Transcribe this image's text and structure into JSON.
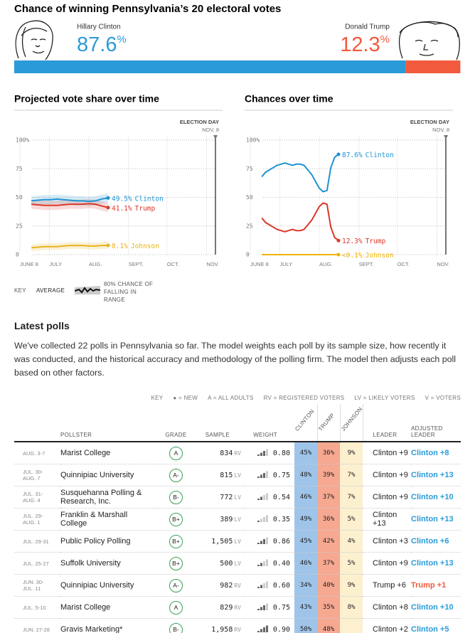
{
  "header": {
    "title": "Chance of winning Pennsylvania’s 20 electoral votes",
    "percent_sign": "%",
    "candidates": [
      {
        "name": "Hillary Clinton",
        "chance": 87.6,
        "color": "#2a9bd8"
      },
      {
        "name": "Donald Trump",
        "chance": 12.3,
        "color": "#f15a3d"
      }
    ]
  },
  "chart_data": [
    {
      "type": "line",
      "title": "Projected vote share over time",
      "election_day": {
        "label": "ELECTION DAY",
        "date": {
          "value": 153,
          "label": "NOV. 8"
        }
      },
      "x": [
        9,
        14,
        19,
        24,
        29,
        34,
        39,
        44,
        49,
        54,
        59,
        64,
        69
      ],
      "xlim": [
        0,
        153
      ],
      "xticks": [
        {
          "value": 0,
          "label": "JUNE 8"
        },
        {
          "value": 23,
          "label": "JULY"
        },
        {
          "value": 54,
          "label": "AUG."
        },
        {
          "value": 85,
          "label": "SEPT."
        },
        {
          "value": 115,
          "label": "OCT."
        },
        {
          "value": 146,
          "label": "NOV."
        }
      ],
      "ylim": [
        0,
        100
      ],
      "yticks": [
        0,
        25,
        50,
        75,
        {
          "value": 100,
          "label": "100%"
        }
      ],
      "grid": true,
      "series": [
        {
          "name": "Clinton",
          "color": "#1f93d2",
          "end_label": "49.5%",
          "values": [
            47,
            47.5,
            48,
            48,
            48.5,
            48,
            47.5,
            47,
            47,
            46.5,
            47,
            48.5,
            49.5
          ],
          "band_low": [
            43,
            43.5,
            44,
            44,
            44.5,
            44,
            43.5,
            43,
            43,
            42.5,
            43,
            44.5,
            45.5
          ],
          "band_high": [
            51,
            51.5,
            52,
            52,
            52.5,
            52,
            51.5,
            51,
            51,
            50.5,
            51,
            52.5,
            53.5
          ]
        },
        {
          "name": "Trump",
          "color": "#d9392a",
          "end_label": "41.1%",
          "values": [
            44,
            43.5,
            43,
            43,
            43,
            43.5,
            44,
            44,
            44,
            44.5,
            44,
            42.5,
            41.1
          ],
          "band_low": [
            40,
            39.5,
            39,
            39,
            39,
            39.5,
            40,
            40,
            40,
            40.5,
            40,
            38.5,
            37.1
          ],
          "band_high": [
            48,
            47.5,
            47,
            47,
            47,
            47.5,
            48,
            48,
            48,
            48.5,
            48,
            46.5,
            45.1
          ]
        },
        {
          "name": "Johnson",
          "color": "#e8b31e",
          "end_label": "8.1%",
          "values": [
            6,
            6.5,
            7,
            7,
            7,
            7.5,
            8,
            8,
            8,
            7.5,
            7.5,
            8,
            8.1
          ],
          "band_low": [
            3,
            3.5,
            4,
            4,
            4,
            4.5,
            5,
            5,
            5,
            4.5,
            4.5,
            5,
            5.1
          ],
          "band_high": [
            9,
            9.5,
            10,
            10,
            10,
            10.5,
            11,
            11,
            11,
            10.5,
            10.5,
            11,
            11.1
          ]
        }
      ]
    },
    {
      "type": "line",
      "title": "Chances over time",
      "election_day": {
        "label": "ELECTION DAY",
        "date": {
          "value": 153,
          "label": "NOV. 8"
        }
      },
      "x": [
        9,
        12,
        15,
        18,
        21,
        24,
        27,
        30,
        33,
        36,
        39,
        42,
        45,
        48,
        51,
        54,
        57,
        60,
        63,
        66,
        69
      ],
      "xlim": [
        0,
        153
      ],
      "xticks": [
        {
          "value": 0,
          "label": "JUNE 8"
        },
        {
          "value": 23,
          "label": "JULY"
        },
        {
          "value": 54,
          "label": "AUG."
        },
        {
          "value": 85,
          "label": "SEPT."
        },
        {
          "value": 115,
          "label": "OCT."
        },
        {
          "value": 146,
          "label": "NOV."
        }
      ],
      "ylim": [
        0,
        100
      ],
      "yticks": [
        0,
        25,
        50,
        75,
        {
          "value": 100,
          "label": "100%"
        }
      ],
      "grid": true,
      "series": [
        {
          "name": "Clinton",
          "color": "#1f93d2",
          "end_label": "87.6%",
          "values": [
            68,
            72,
            74,
            76,
            78,
            79,
            80,
            79,
            78,
            79,
            79,
            78,
            74,
            70,
            64,
            58,
            55,
            56,
            76,
            85,
            87.6
          ]
        },
        {
          "name": "Trump",
          "color": "#d9392a",
          "end_label": "12.3%",
          "values": [
            32,
            28,
            26,
            24,
            22,
            21,
            20,
            21,
            22,
            21,
            21,
            22,
            26,
            30,
            36,
            42,
            45,
            44,
            24,
            15,
            12.3
          ]
        },
        {
          "name": "Johnson",
          "color": "#f0b400",
          "end_label": "<0.1%",
          "values": [
            0,
            0,
            0,
            0,
            0,
            0,
            0,
            0,
            0,
            0,
            0,
            0,
            0,
            0,
            0,
            0,
            0,
            0,
            0,
            0,
            0
          ]
        }
      ]
    }
  ],
  "key": {
    "label": "KEY",
    "average": "AVERAGE",
    "range": "80% CHANCE OF FALLING IN RANGE"
  },
  "polls": {
    "title": "Latest polls",
    "description": "We've collected 22 polls in Pennsylvania so far. The model weights each poll by its sample size, how recently it was conducted, and the historical accuracy and methodology of the polling firm. The model then adjusts each poll based on other factors.",
    "key": [
      "KEY",
      "● = NEW",
      "A = ALL ADULTS",
      "RV = REGISTERED VOTERS",
      "LV = LIKELY VOTERS",
      "V = VOTERS"
    ],
    "columns": {
      "pollster": "POLLSTER",
      "grade": "GRADE",
      "sample": "SAMPLE",
      "weight": "WEIGHT",
      "leader": "LEADER",
      "adjusted_leader": "ADJUSTED LEADER"
    },
    "candidates": [
      {
        "label": "CLINTON",
        "color": "#9fc4ea"
      },
      {
        "label": "TRUMP",
        "color": "#f6a891"
      },
      {
        "label": "JOHNSON",
        "color": "#fdf0cf"
      }
    ],
    "rows": [
      {
        "dates": [
          "AUG. 3-7"
        ],
        "pollster": "Marist College",
        "grade": "A",
        "sample": "834",
        "population": "RV",
        "weight": "0.80",
        "shares": [
          "45%",
          "36%",
          "9%"
        ],
        "leader": "Clinton +9",
        "adjusted_leader": "Clinton +8"
      },
      {
        "dates": [
          "JUL. 30-",
          "AUG. 7"
        ],
        "pollster": "Quinnipiac University",
        "grade": "A-",
        "sample": "815",
        "population": "LV",
        "weight": "0.75",
        "shares": [
          "48%",
          "39%",
          "7%"
        ],
        "leader": "Clinton +9",
        "adjusted_leader": "Clinton +13"
      },
      {
        "dates": [
          "JUL. 31-",
          "AUG. 4"
        ],
        "pollster": "Susquehanna Polling & Research, Inc.",
        "grade": "B-",
        "sample": "772",
        "population": "LV",
        "weight": "0.54",
        "shares": [
          "46%",
          "37%",
          "7%"
        ],
        "leader": "Clinton +9",
        "adjusted_leader": "Clinton +10"
      },
      {
        "dates": [
          "JUL. 29-",
          "AUG. 1"
        ],
        "pollster": "Franklin & Marshall College",
        "grade": "B+",
        "sample": "389",
        "population": "LV",
        "weight": "0.35",
        "shares": [
          "49%",
          "36%",
          "5%"
        ],
        "leader": "Clinton +13",
        "adjusted_leader": "Clinton +13"
      },
      {
        "dates": [
          "JUL. 29-31"
        ],
        "pollster": "Public Policy Polling",
        "grade": "B+",
        "sample": "1,505",
        "population": "LV",
        "weight": "0.86",
        "shares": [
          "45%",
          "42%",
          "4%"
        ],
        "leader": "Clinton +3",
        "adjusted_leader": "Clinton +6"
      },
      {
        "dates": [
          "JUL. 25-27"
        ],
        "pollster": "Suffolk University",
        "grade": "B+",
        "sample": "500",
        "population": "LV",
        "weight": "0.40",
        "shares": [
          "46%",
          "37%",
          "5%"
        ],
        "leader": "Clinton +9",
        "adjusted_leader": "Clinton +13"
      },
      {
        "dates": [
          "JUN. 30-",
          "JUL. 11"
        ],
        "pollster": "Quinnipiac University",
        "grade": "A-",
        "sample": "982",
        "population": "RV",
        "weight": "0.60",
        "shares": [
          "34%",
          "40%",
          "9%"
        ],
        "leader": "Trump +6",
        "adjusted_leader": "Trump +1"
      },
      {
        "dates": [
          "JUL. 5-10"
        ],
        "pollster": "Marist College",
        "grade": "A",
        "sample": "829",
        "population": "RV",
        "weight": "0.75",
        "shares": [
          "43%",
          "35%",
          "8%"
        ],
        "leader": "Clinton +8",
        "adjusted_leader": "Clinton +10"
      },
      {
        "dates": [
          "JUN. 27-28"
        ],
        "pollster": "Gravis Marketing*",
        "grade": "B-",
        "sample": "1,958",
        "population": "RV",
        "weight": "0.90",
        "shares": [
          "50%",
          "48%",
          null
        ],
        "leader": "Clinton +2",
        "adjusted_leader": "Clinton +5"
      }
    ]
  }
}
